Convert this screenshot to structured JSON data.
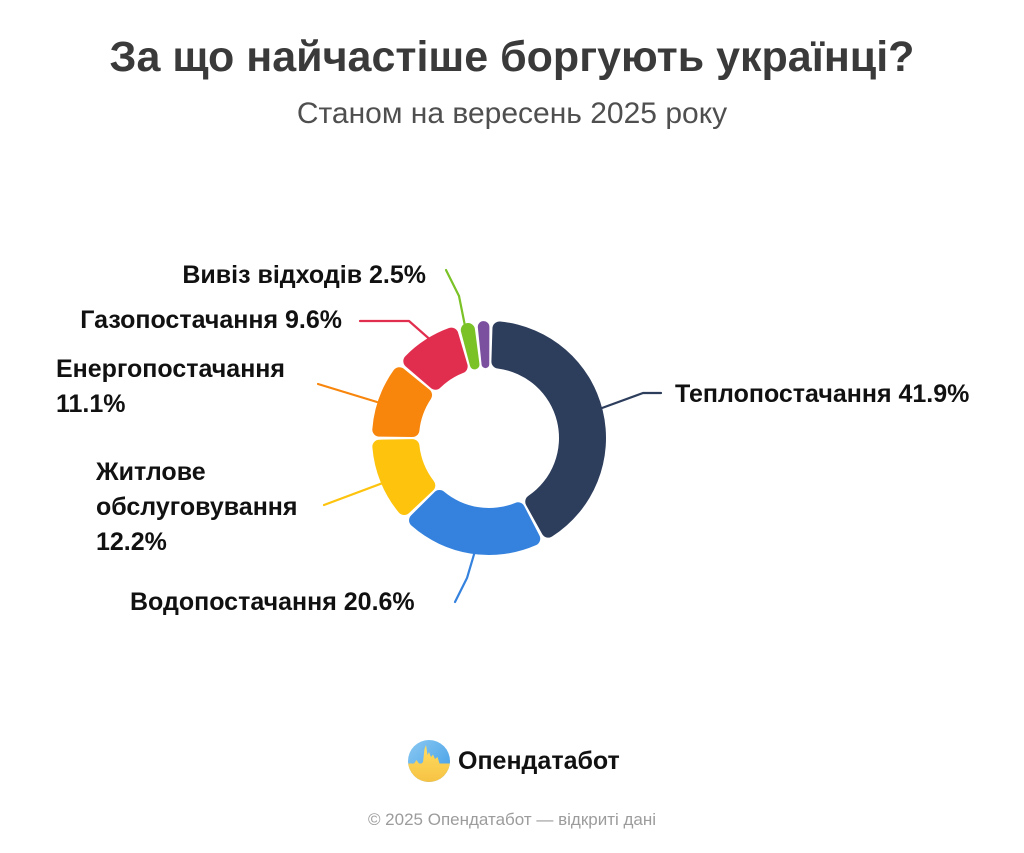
{
  "header": {
    "title": "За що найчастіше боргують українці?",
    "subtitle": "Станом на вересень 2025 року"
  },
  "chart_data": {
    "type": "pie",
    "variant": "donut",
    "unit": "%",
    "title": "За що найчастіше боргують українці?",
    "subtitle": "Станом на вересень 2025 року",
    "legend_position": "callout-labels",
    "segments": [
      {
        "label": "Теплопостачання",
        "value": 41.9,
        "color": "#2d3d5c"
      },
      {
        "label": "Водопостачання",
        "value": 20.6,
        "color": "#3482de"
      },
      {
        "label": "Житлове обслуговування",
        "value": 12.2,
        "color": "#fdc30d"
      },
      {
        "label": "Енергопостачання",
        "value": 11.1,
        "color": "#f8850c"
      },
      {
        "label": "Газопостачання",
        "value": 9.6,
        "color": "#e22e4e"
      },
      {
        "label": "Вивіз відходів",
        "value": 2.5,
        "color": "#7ac226"
      },
      {
        "label": "",
        "value": 2.1,
        "color": "#7b509f"
      }
    ]
  },
  "callouts": {
    "teplo": {
      "lines": [
        "Теплопостачання 41.9%"
      ]
    },
    "vodo": {
      "lines": [
        "Водопостачання 20.6%"
      ]
    },
    "zhytlove": {
      "lines": [
        "Житлове",
        "обслуговування",
        "12.2%"
      ]
    },
    "energo": {
      "lines": [
        "Енергопостачання",
        "11.1%"
      ]
    },
    "gazo": {
      "lines": [
        "Газопостачання 9.6%"
      ]
    },
    "vyviz": {
      "lines": [
        "Вивіз відходів 2.5%"
      ]
    }
  },
  "footer": {
    "brand": "Опендатабот",
    "copyright": "© 2025 Опендатабот — відкриті дані"
  }
}
